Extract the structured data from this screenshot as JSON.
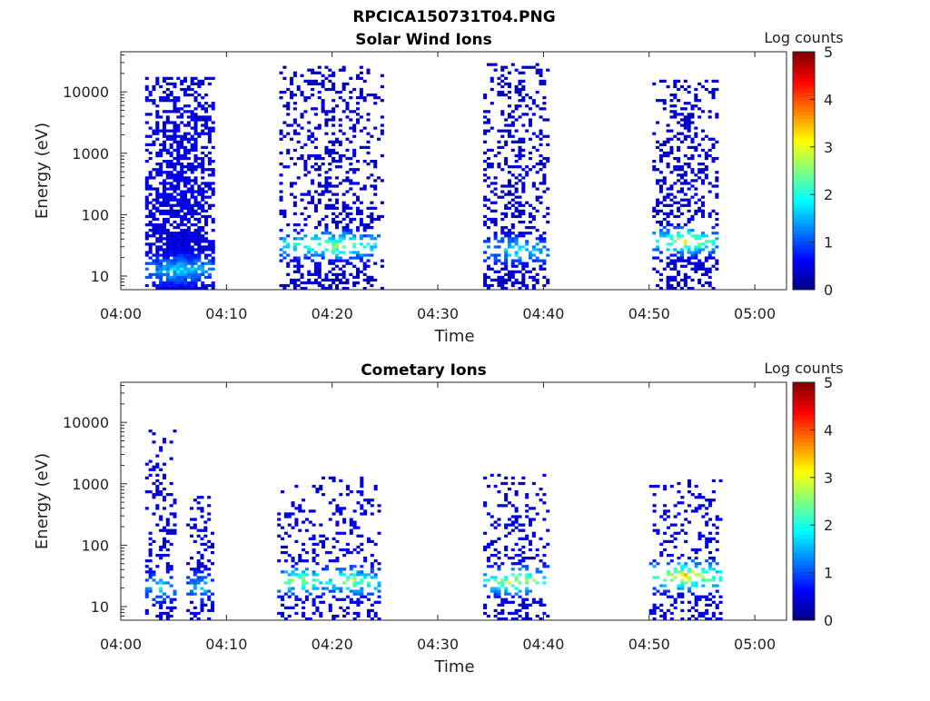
{
  "figure_title": "RPCICA150731T04.PNG",
  "chart_data": [
    {
      "type": "heatmap",
      "title": "Solar Wind Ions",
      "xlabel": "Time",
      "ylabel": "Energy (eV)",
      "x_ticks": [
        "04:00",
        "04:10",
        "04:20",
        "04:30",
        "04:40",
        "04:50",
        "05:00"
      ],
      "x_range_minutes": [
        0,
        63
      ],
      "y_scale": "log",
      "y_ticks": [
        "10",
        "100",
        "1000",
        "10000"
      ],
      "y_range": [
        6,
        45000
      ],
      "colorbar": {
        "label": "Log counts",
        "ticks": [
          "0",
          "1",
          "2",
          "3",
          "4",
          "5"
        ],
        "range": [
          0,
          5
        ],
        "colormap": "jet"
      },
      "clusters": [
        {
          "start": 2.3,
          "end": 8.7,
          "emin": 6,
          "emax": 16000,
          "density": 0.78,
          "peak_energy": 12,
          "peak_level": 1.8,
          "base_level": 0.3
        },
        {
          "start": 15.0,
          "end": 24.8,
          "emin": 6,
          "emax": 25000,
          "density": 0.35,
          "peak_energy": 30,
          "peak_level": 2.9,
          "base_level": 0.2
        },
        {
          "start": 34.3,
          "end": 40.5,
          "emin": 6,
          "emax": 28000,
          "density": 0.38,
          "peak_energy": 25,
          "peak_level": 2.0,
          "base_level": 0.2
        },
        {
          "start": 50.3,
          "end": 56.5,
          "emin": 6,
          "emax": 15000,
          "density": 0.4,
          "peak_energy": 35,
          "peak_level": 3.2,
          "base_level": 0.2
        }
      ]
    },
    {
      "type": "heatmap",
      "title": "Cometary Ions",
      "xlabel": "Time",
      "ylabel": "Energy (eV)",
      "x_ticks": [
        "04:00",
        "04:10",
        "04:20",
        "04:30",
        "04:40",
        "04:50",
        "05:00"
      ],
      "x_range_minutes": [
        0,
        63
      ],
      "y_scale": "log",
      "y_ticks": [
        "10",
        "100",
        "1000",
        "10000"
      ],
      "y_range": [
        6,
        45000
      ],
      "colorbar": {
        "label": "Log counts",
        "ticks": [
          "0",
          "1",
          "2",
          "3",
          "4",
          "5"
        ],
        "range": [
          0,
          5
        ],
        "colormap": "jet"
      },
      "clusters": [
        {
          "start": 2.3,
          "end": 5.0,
          "emin": 6,
          "emax": 8000,
          "density": 0.3,
          "peak_energy": 20,
          "peak_level": 2.0,
          "base_level": 0.3
        },
        {
          "start": 6.2,
          "end": 8.7,
          "emin": 6,
          "emax": 600,
          "density": 0.35,
          "peak_energy": 20,
          "peak_level": 1.7,
          "base_level": 0.3
        },
        {
          "start": 14.8,
          "end": 19.0,
          "emin": 6,
          "emax": 900,
          "density": 0.28,
          "peak_energy": 25,
          "peak_level": 3.0,
          "base_level": 0.3
        },
        {
          "start": 19.0,
          "end": 24.6,
          "emin": 6,
          "emax": 1200,
          "density": 0.3,
          "peak_energy": 25,
          "peak_level": 2.8,
          "base_level": 0.3
        },
        {
          "start": 34.3,
          "end": 40.5,
          "emin": 6,
          "emax": 1400,
          "density": 0.28,
          "peak_energy": 25,
          "peak_level": 3.3,
          "base_level": 0.3
        },
        {
          "start": 50.0,
          "end": 56.7,
          "emin": 6,
          "emax": 1100,
          "density": 0.3,
          "peak_energy": 30,
          "peak_level": 3.8,
          "base_level": 0.3
        }
      ]
    }
  ]
}
